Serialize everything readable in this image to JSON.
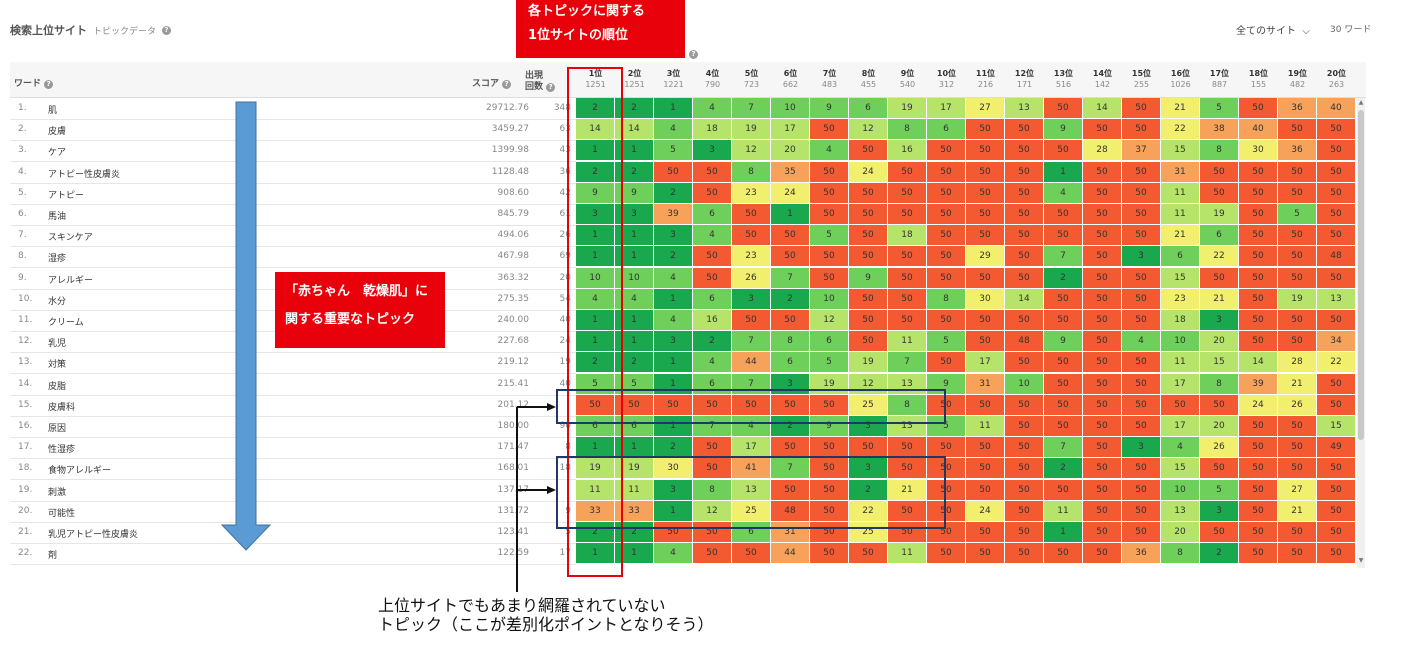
{
  "header": {
    "title": "検索上位サイト",
    "subtitle": "トピックデータ",
    "site_filter": "全てのサイト",
    "word_count": "30 ワード"
  },
  "columns": {
    "word": "ワード",
    "score": "スコア",
    "appear_line1": "出現",
    "appear_line2": "回数"
  },
  "ranks": [
    {
      "label": "1位",
      "count": "1251"
    },
    {
      "label": "2位",
      "count": "1251"
    },
    {
      "label": "3位",
      "count": "1221"
    },
    {
      "label": "4位",
      "count": "790"
    },
    {
      "label": "5位",
      "count": "723"
    },
    {
      "label": "6位",
      "count": "662"
    },
    {
      "label": "7位",
      "count": "483"
    },
    {
      "label": "8位",
      "count": "455"
    },
    {
      "label": "9位",
      "count": "540"
    },
    {
      "label": "10位",
      "count": "312"
    },
    {
      "label": "11位",
      "count": "216"
    },
    {
      "label": "12位",
      "count": "171"
    },
    {
      "label": "13位",
      "count": "516"
    },
    {
      "label": "14位",
      "count": "142"
    },
    {
      "label": "15位",
      "count": "255"
    },
    {
      "label": "16位",
      "count": "1026"
    },
    {
      "label": "17位",
      "count": "887"
    },
    {
      "label": "18位",
      "count": "155"
    },
    {
      "label": "19位",
      "count": "482"
    },
    {
      "label": "20位",
      "count": "263"
    }
  ],
  "rows": [
    {
      "n": "1.",
      "word": "肌",
      "score": "29712.76",
      "appear": "348",
      "cells": [
        "2",
        "2",
        "1",
        "4",
        "7",
        "10",
        "9",
        "6",
        "19",
        "17",
        "27",
        "13",
        "50",
        "14",
        "50",
        "21",
        "5",
        "50",
        "36",
        "40"
      ]
    },
    {
      "n": "2.",
      "word": "皮膚",
      "score": "3459.27",
      "appear": "63",
      "cells": [
        "14",
        "14",
        "4",
        "18",
        "19",
        "17",
        "50",
        "12",
        "8",
        "6",
        "50",
        "50",
        "9",
        "50",
        "50",
        "22",
        "38",
        "40",
        "50",
        "50"
      ]
    },
    {
      "n": "3.",
      "word": "ケア",
      "score": "1399.98",
      "appear": "43",
      "cells": [
        "1",
        "1",
        "5",
        "3",
        "12",
        "20",
        "4",
        "50",
        "16",
        "50",
        "50",
        "50",
        "50",
        "28",
        "37",
        "15",
        "8",
        "30",
        "36",
        "50"
      ]
    },
    {
      "n": "4.",
      "word": "アトピー性皮膚炎",
      "score": "1128.48",
      "appear": "36",
      "cells": [
        "2",
        "2",
        "50",
        "50",
        "8",
        "35",
        "50",
        "24",
        "50",
        "50",
        "50",
        "50",
        "1",
        "50",
        "50",
        "31",
        "50",
        "50",
        "50",
        "50"
      ]
    },
    {
      "n": "5.",
      "word": "アトピー",
      "score": "908.60",
      "appear": "42",
      "cells": [
        "9",
        "9",
        "2",
        "50",
        "23",
        "24",
        "50",
        "50",
        "50",
        "50",
        "50",
        "50",
        "4",
        "50",
        "50",
        "11",
        "50",
        "50",
        "50",
        "50"
      ]
    },
    {
      "n": "6.",
      "word": "馬油",
      "score": "845.79",
      "appear": "61",
      "cells": [
        "3",
        "3",
        "39",
        "6",
        "50",
        "1",
        "50",
        "50",
        "50",
        "50",
        "50",
        "50",
        "50",
        "50",
        "50",
        "11",
        "19",
        "50",
        "5",
        "50"
      ]
    },
    {
      "n": "7.",
      "word": "スキンケア",
      "score": "494.06",
      "appear": "26",
      "cells": [
        "1",
        "1",
        "3",
        "4",
        "50",
        "50",
        "5",
        "50",
        "18",
        "50",
        "50",
        "50",
        "50",
        "50",
        "50",
        "21",
        "6",
        "50",
        "50",
        "50"
      ]
    },
    {
      "n": "8.",
      "word": "湿疹",
      "score": "467.98",
      "appear": "69",
      "cells": [
        "1",
        "1",
        "2",
        "50",
        "23",
        "50",
        "50",
        "50",
        "50",
        "50",
        "29",
        "50",
        "7",
        "50",
        "3",
        "6",
        "22",
        "50",
        "50",
        "48"
      ]
    },
    {
      "n": "9.",
      "word": "アレルギー",
      "score": "363.32",
      "appear": "20",
      "cells": [
        "10",
        "10",
        "4",
        "50",
        "26",
        "7",
        "50",
        "9",
        "50",
        "50",
        "50",
        "50",
        "2",
        "50",
        "50",
        "15",
        "50",
        "50",
        "50",
        "50"
      ]
    },
    {
      "n": "10.",
      "word": "水分",
      "score": "275.35",
      "appear": "54",
      "cells": [
        "4",
        "4",
        "1",
        "6",
        "3",
        "2",
        "10",
        "50",
        "50",
        "8",
        "30",
        "14",
        "50",
        "50",
        "50",
        "23",
        "21",
        "50",
        "19",
        "13"
      ]
    },
    {
      "n": "11.",
      "word": "クリーム",
      "score": "240.00",
      "appear": "40",
      "cells": [
        "1",
        "1",
        "4",
        "16",
        "50",
        "50",
        "12",
        "50",
        "50",
        "50",
        "50",
        "50",
        "50",
        "50",
        "50",
        "18",
        "3",
        "50",
        "50",
        "50"
      ]
    },
    {
      "n": "12.",
      "word": "乳児",
      "score": "227.68",
      "appear": "24",
      "cells": [
        "1",
        "1",
        "3",
        "2",
        "7",
        "8",
        "6",
        "50",
        "11",
        "5",
        "50",
        "48",
        "9",
        "50",
        "4",
        "10",
        "20",
        "50",
        "50",
        "34"
      ]
    },
    {
      "n": "13.",
      "word": "対策",
      "score": "219.12",
      "appear": "19",
      "cells": [
        "2",
        "2",
        "1",
        "4",
        "44",
        "6",
        "5",
        "19",
        "7",
        "50",
        "17",
        "50",
        "50",
        "50",
        "50",
        "11",
        "15",
        "14",
        "28",
        "22"
      ]
    },
    {
      "n": "14.",
      "word": "皮脂",
      "score": "215.41",
      "appear": "40",
      "cells": [
        "5",
        "5",
        "1",
        "6",
        "7",
        "3",
        "19",
        "12",
        "13",
        "9",
        "31",
        "10",
        "50",
        "50",
        "50",
        "17",
        "8",
        "39",
        "21",
        "50"
      ]
    },
    {
      "n": "15.",
      "word": "皮膚科",
      "score": "201.12",
      "appear": "",
      "cells": [
        "50",
        "50",
        "50",
        "50",
        "50",
        "50",
        "50",
        "25",
        "8",
        "50",
        "50",
        "50",
        "50",
        "50",
        "50",
        "50",
        "50",
        "24",
        "26",
        "50"
      ]
    },
    {
      "n": "16.",
      "word": "原因",
      "score": "180.00",
      "appear": "90",
      "cells": [
        "6",
        "6",
        "1",
        "7",
        "4",
        "2",
        "9",
        "3",
        "13",
        "5",
        "11",
        "50",
        "50",
        "50",
        "50",
        "17",
        "20",
        "50",
        "50",
        "15"
      ]
    },
    {
      "n": "17.",
      "word": "性湿疹",
      "score": "171.47",
      "appear": "8",
      "cells": [
        "1",
        "1",
        "2",
        "50",
        "17",
        "50",
        "50",
        "50",
        "50",
        "50",
        "50",
        "50",
        "7",
        "50",
        "3",
        "4",
        "26",
        "50",
        "50",
        "49"
      ]
    },
    {
      "n": "18.",
      "word": "食物アレルギー",
      "score": "168.01",
      "appear": "18",
      "cells": [
        "19",
        "19",
        "30",
        "50",
        "41",
        "7",
        "50",
        "3",
        "50",
        "50",
        "50",
        "50",
        "2",
        "50",
        "50",
        "15",
        "50",
        "50",
        "50",
        "50"
      ]
    },
    {
      "n": "19.",
      "word": "刺激",
      "score": "137.17",
      "appear": "",
      "cells": [
        "11",
        "11",
        "3",
        "8",
        "13",
        "50",
        "50",
        "2",
        "21",
        "50",
        "50",
        "50",
        "50",
        "50",
        "50",
        "10",
        "5",
        "50",
        "27",
        "50"
      ]
    },
    {
      "n": "20.",
      "word": "可能性",
      "score": "131.72",
      "appear": "9",
      "cells": [
        "33",
        "33",
        "1",
        "12",
        "25",
        "48",
        "50",
        "22",
        "50",
        "50",
        "24",
        "50",
        "11",
        "50",
        "50",
        "13",
        "3",
        "50",
        "21",
        "50"
      ]
    },
    {
      "n": "21.",
      "word": "乳児アトピー性皮膚炎",
      "score": "123.41",
      "appear": "5",
      "cells": [
        "2",
        "2",
        "50",
        "50",
        "6",
        "31",
        "50",
        "25",
        "50",
        "50",
        "50",
        "50",
        "1",
        "50",
        "50",
        "20",
        "50",
        "50",
        "50",
        "50"
      ]
    },
    {
      "n": "22.",
      "word": "剤",
      "score": "122.59",
      "appear": "17",
      "cells": [
        "1",
        "1",
        "4",
        "50",
        "50",
        "44",
        "50",
        "50",
        "11",
        "50",
        "50",
        "50",
        "50",
        "50",
        "36",
        "8",
        "2",
        "50",
        "50",
        "50"
      ]
    }
  ],
  "annotations": {
    "top_callout_line1": "各トピックに関する",
    "top_callout_line2": "1位サイトの順位",
    "mid_callout_line1": "「赤ちゃん　乾燥肌」に",
    "mid_callout_line2": "関する重要なトピック",
    "bottom_note_line1": "上位サイトでもあまり網羅されていない",
    "bottom_note_line2": "トピック（ここが差別化ポイントとなりそう）"
  },
  "colors": {
    "green": "#1aa84f",
    "light_green": "#6fcf5b",
    "yellow_green": "#b6e36a",
    "yellow": "#f2ef6e",
    "orange": "#f7a25a",
    "red": "#f45a32",
    "callout": "#e8000a",
    "arrow": "#5b9bd5"
  },
  "icons": [
    "help-icon",
    "chevron-down-icon",
    "scroll-up-icon",
    "scroll-down-icon"
  ]
}
